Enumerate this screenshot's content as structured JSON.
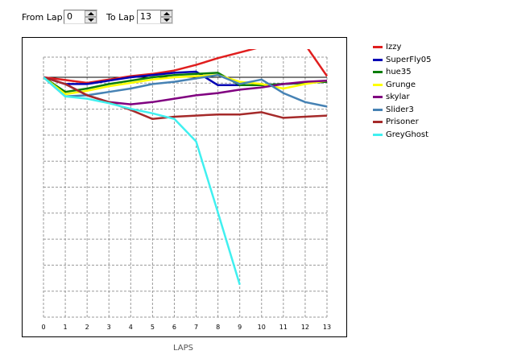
{
  "controls": {
    "from_label": "From Lap",
    "from_value": "0",
    "to_label": "To Lap",
    "to_value": "13"
  },
  "chart_data": {
    "type": "line",
    "xlabel": "LAPS",
    "x": [
      0,
      1,
      2,
      3,
      4,
      5,
      6,
      7,
      8,
      9,
      10,
      11,
      12,
      13
    ],
    "xlim": [
      0,
      13
    ],
    "grid": true,
    "legend_position": "right",
    "series": [
      {
        "name": "Izzy",
        "color": "#e01e1e",
        "points": [
          [
            0,
            0
          ],
          [
            1,
            -0.12
          ],
          [
            2,
            -0.25
          ],
          [
            3,
            -0.1
          ],
          [
            4,
            0.05
          ],
          [
            5,
            0.15
          ],
          [
            6,
            0.3
          ],
          [
            7,
            0.55
          ],
          [
            8,
            0.85
          ],
          [
            9,
            1.1
          ],
          [
            10,
            1.35
          ],
          [
            11,
            1.4
          ],
          [
            12,
            1.45
          ],
          [
            13,
            0.05
          ]
        ]
      },
      {
        "name": "SuperFly05",
        "color": "#0000b4",
        "points": [
          [
            0,
            0
          ],
          [
            1,
            -0.3
          ],
          [
            2,
            -0.3
          ],
          [
            3,
            -0.15
          ],
          [
            4,
            0
          ],
          [
            5,
            0.1
          ],
          [
            6,
            0.2
          ],
          [
            7,
            0.25
          ],
          [
            8,
            -0.35
          ],
          [
            9,
            -0.35
          ],
          [
            10,
            -0.35
          ],
          [
            11,
            -0.3
          ],
          [
            12,
            -0.25
          ],
          [
            13,
            -0.2
          ]
        ]
      },
      {
        "name": "hue35",
        "color": "#0b7d0b",
        "points": [
          [
            0,
            0
          ],
          [
            1,
            -0.65
          ],
          [
            2,
            -0.5
          ],
          [
            3,
            -0.3
          ],
          [
            4,
            -0.15
          ],
          [
            5,
            0
          ],
          [
            6,
            0.1
          ],
          [
            7,
            0.15
          ],
          [
            8,
            0.2
          ],
          [
            9,
            -0.35
          ],
          [
            10,
            -0.35
          ],
          [
            11,
            -0.3
          ],
          [
            12,
            -0.25
          ],
          [
            13,
            -0.2
          ]
        ]
      },
      {
        "name": "Grunge",
        "color": "#ffff00",
        "points": [
          [
            0,
            0
          ],
          [
            1,
            -0.75
          ],
          [
            2,
            -0.6
          ],
          [
            3,
            -0.4
          ],
          [
            4,
            -0.25
          ],
          [
            5,
            -0.1
          ],
          [
            6,
            0
          ],
          [
            7,
            0.05
          ],
          [
            8,
            0.1
          ],
          [
            9,
            -0.2
          ],
          [
            10,
            -0.3
          ],
          [
            11,
            -0.5
          ],
          [
            12,
            -0.3
          ],
          [
            13,
            -0.15
          ]
        ]
      },
      {
        "name": "skylar",
        "color": "#800080",
        "points": [
          [
            0,
            0
          ],
          [
            1,
            -0.3
          ],
          [
            2,
            -0.8
          ],
          [
            3,
            -1.1
          ],
          [
            4,
            -1.2
          ],
          [
            5,
            -1.1
          ],
          [
            6,
            -0.95
          ],
          [
            7,
            -0.8
          ],
          [
            8,
            -0.7
          ],
          [
            9,
            -0.55
          ],
          [
            10,
            -0.45
          ],
          [
            11,
            -0.3
          ],
          [
            12,
            -0.2
          ],
          [
            13,
            -0.15
          ]
        ]
      },
      {
        "name": "Slider3",
        "color": "#4682b4",
        "points": [
          [
            0,
            0
          ],
          [
            1,
            -0.85
          ],
          [
            2,
            -0.8
          ],
          [
            3,
            -0.65
          ],
          [
            4,
            -0.5
          ],
          [
            5,
            -0.3
          ],
          [
            6,
            -0.2
          ],
          [
            7,
            -0.05
          ],
          [
            8,
            0.1
          ],
          [
            9,
            -0.3
          ],
          [
            10,
            -0.1
          ],
          [
            11,
            -0.7
          ],
          [
            12,
            -1.1
          ],
          [
            13,
            -1.3
          ]
        ]
      },
      {
        "name": "Prisoner",
        "color": "#a52a2a",
        "points": [
          [
            0,
            0
          ],
          [
            1,
            -0.3
          ],
          [
            2,
            -0.8
          ],
          [
            3,
            -1.1
          ],
          [
            4,
            -1.45
          ],
          [
            5,
            -1.85
          ],
          [
            6,
            -1.75
          ],
          [
            7,
            -1.7
          ],
          [
            8,
            -1.65
          ],
          [
            9,
            -1.65
          ],
          [
            10,
            -1.55
          ],
          [
            11,
            -1.8
          ],
          [
            12,
            -1.75
          ],
          [
            13,
            -1.7
          ]
        ]
      },
      {
        "name": "GreyGhost",
        "color": "#40f0f0",
        "points": [
          [
            0,
            0
          ],
          [
            1,
            -0.85
          ],
          [
            2,
            -0.95
          ],
          [
            3,
            -1.15
          ],
          [
            4,
            -1.4
          ],
          [
            5,
            -1.6
          ],
          [
            6,
            -1.85
          ],
          [
            7,
            -2.85
          ],
          [
            8,
            -6.0
          ],
          [
            9,
            -9.2
          ]
        ]
      }
    ]
  }
}
